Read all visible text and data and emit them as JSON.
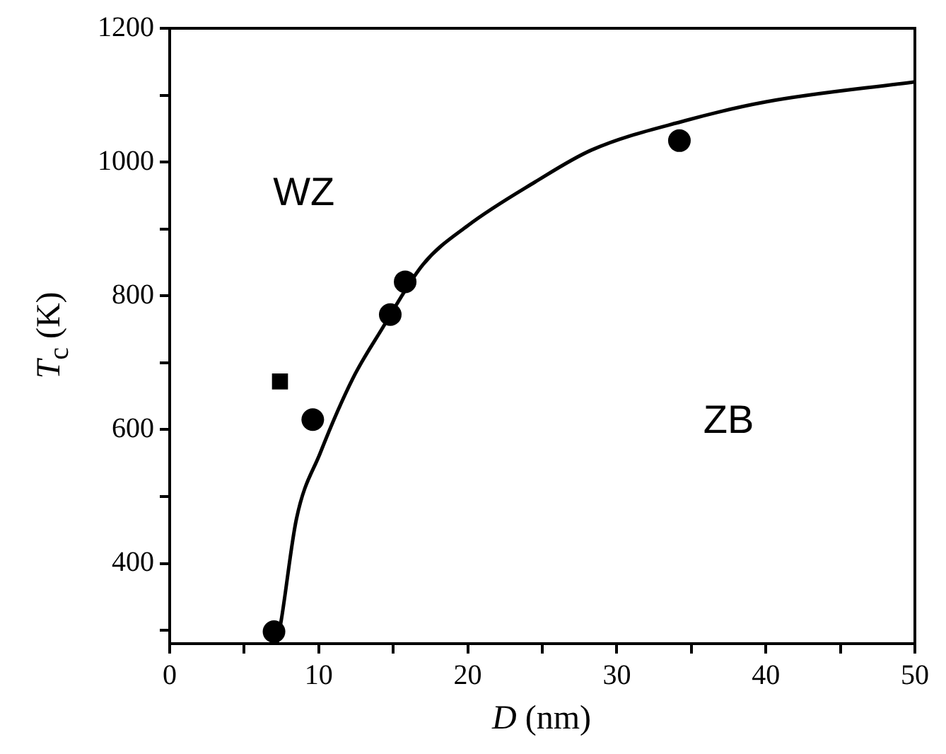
{
  "chart_data": {
    "type": "scatter",
    "xlabel": "D (nm)",
    "ylabel": "T$_{c}$ (K)",
    "xlim": [
      0,
      50
    ],
    "ylim": [
      280,
      1200
    ],
    "xticks": [
      0,
      {
        "value": 5,
        "label": null
      },
      10,
      {
        "value": 15,
        "label": null
      },
      20,
      {
        "value": 25,
        "label": null
      },
      30,
      {
        "value": 35,
        "label": null
      },
      40,
      {
        "value": 45,
        "label": null
      },
      50
    ],
    "yticks": [
      {
        "value": 300,
        "label": null
      },
      400,
      {
        "value": 500,
        "label": null
      },
      600,
      {
        "value": 700,
        "label": null
      },
      800,
      {
        "value": 900,
        "label": null
      },
      1000,
      {
        "value": 1100,
        "label": null
      },
      1200
    ],
    "grid": false,
    "legend": false,
    "series": [
      {
        "type": "line",
        "color": "#000000",
        "marker": "none",
        "line_style": "solid",
        "x": [
          7.2,
          7.5,
          8.5,
          10.1,
          12.3,
          14.2,
          17.0,
          20.0,
          24.5,
          28.3,
          34.6,
          40.0,
          50.0
        ],
        "values": [
          280,
          317,
          466,
          565,
          677,
          749,
          847,
          905,
          970,
          1018,
          1062,
          1090,
          1120
        ]
      },
      {
        "type": "scatter",
        "color": "#000000",
        "marker": "circle",
        "x": [
          7.0,
          9.6,
          14.8,
          15.8,
          34.2
        ],
        "values": [
          298,
          615,
          772,
          821,
          1032
        ]
      },
      {
        "type": "scatter",
        "color": "#000000",
        "marker": "square",
        "x": [
          7.4
        ],
        "values": [
          672
        ]
      }
    ],
    "annotations": [
      "WZ",
      "ZB"
    ]
  }
}
